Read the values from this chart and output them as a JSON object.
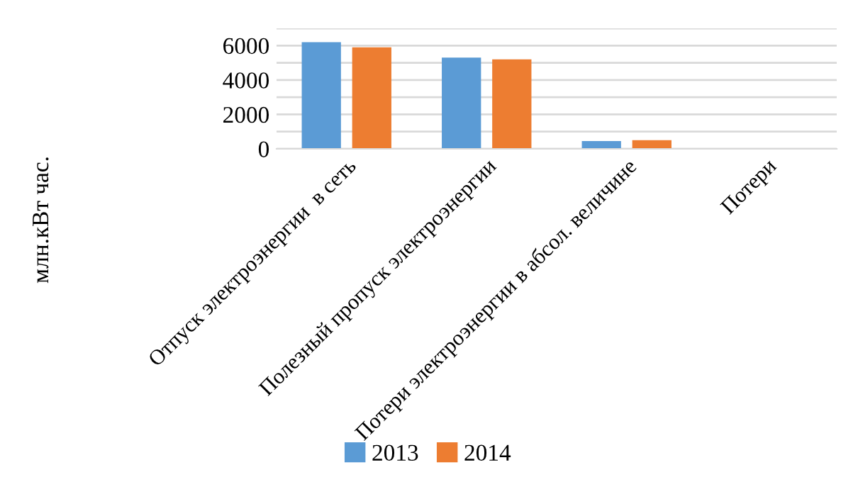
{
  "chart_data": {
    "type": "bar",
    "ylabel": "млн.кВт час.",
    "categories": [
      "Отпуск электроэнергии  в сеть",
      "Полезный пропуск электроэнергии",
      "Потери электроэнергии в абсол. величине",
      "Потери"
    ],
    "series": [
      {
        "name": "2013",
        "color": "#5b9bd5",
        "values": [
          6200,
          5300,
          450,
          null
        ]
      },
      {
        "name": "2014",
        "color": "#ed7d31",
        "values": [
          5900,
          5200,
          500,
          null
        ]
      }
    ],
    "ylim": [
      0,
      7000
    ],
    "yticks": [
      0,
      {
        "value": 1000,
        "label": null
      },
      2000,
      {
        "value": 3000,
        "label": null
      },
      4000,
      {
        "value": 5000,
        "label": null
      },
      6000,
      {
        "value": 7000,
        "label": null
      }
    ],
    "grid": "y",
    "legend": "bottom"
  }
}
